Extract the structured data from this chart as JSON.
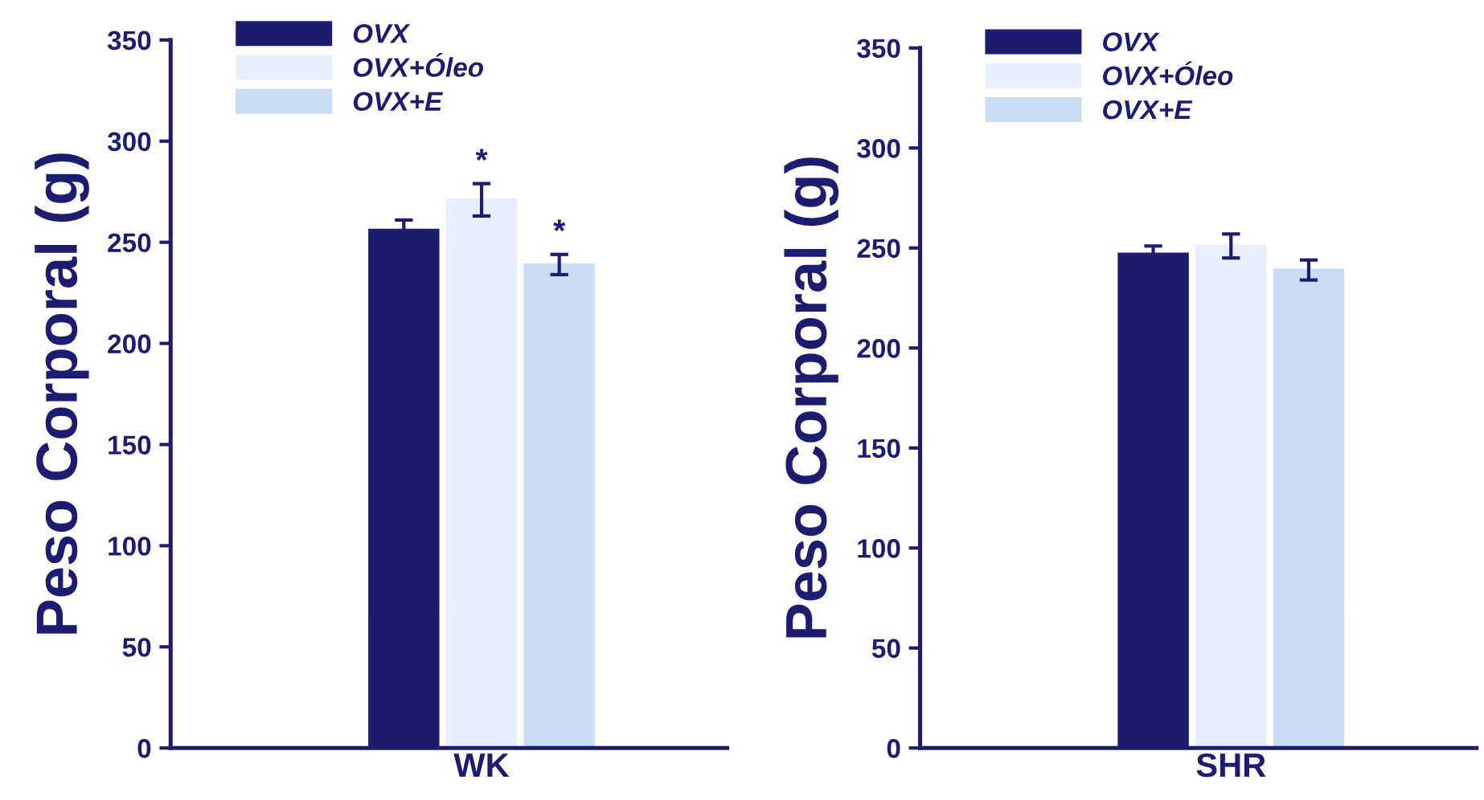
{
  "chart_data": [
    {
      "type": "bar",
      "ylabel": "Peso Corporal (g)",
      "categories": [
        "WK"
      ],
      "ylim": [
        0,
        350
      ],
      "yticks": [
        0,
        50,
        100,
        150,
        200,
        250,
        300,
        350
      ],
      "legend": "top left",
      "grid": false,
      "series": [
        {
          "name": "OVX",
          "color": "#1c1c70",
          "values": [
            256
          ],
          "errors": [
            5
          ]
        },
        {
          "name": "OVX+Óleo",
          "color": "#e8eefa",
          "values": [
            271
          ],
          "errors": [
            8
          ]
        },
        {
          "name": "OVX+E",
          "color": "#c8dcf4",
          "values": [
            239
          ],
          "errors": [
            5
          ]
        }
      ],
      "annotations": [
        "*",
        "*"
      ]
    },
    {
      "type": "bar",
      "ylabel": "Peso Corporal (g)",
      "categories": [
        "SHR"
      ],
      "ylim": [
        0,
        350
      ],
      "yticks": [
        0,
        50,
        100,
        150,
        200,
        250,
        300,
        350
      ],
      "legend": "top left",
      "grid": false,
      "series": [
        {
          "name": "OVX",
          "color": "#1c1c70",
          "values": [
            247
          ],
          "errors": [
            4
          ]
        },
        {
          "name": "OVX+Óleo",
          "color": "#e8eefa",
          "values": [
            251
          ],
          "errors": [
            6
          ]
        },
        {
          "name": "OVX+E",
          "color": "#c8dcf4",
          "values": [
            239
          ],
          "errors": [
            5
          ]
        }
      ]
    }
  ]
}
